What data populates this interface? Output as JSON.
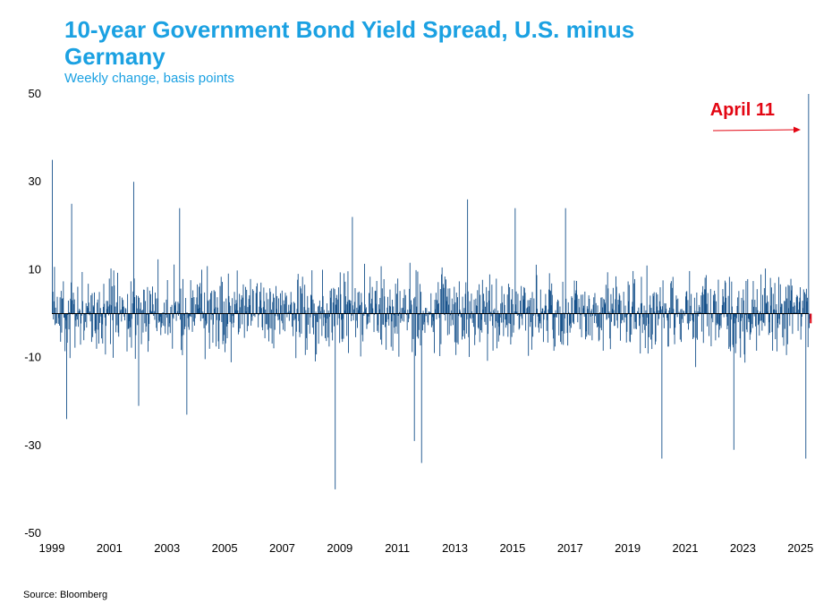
{
  "header": {
    "title": "10-year Government Bond Yield Spread, U.S. minus Germany",
    "subtitle": "Weekly change, basis points"
  },
  "footer": {
    "source": "Source: Bloomberg"
  },
  "colors": {
    "bars": "#15508a",
    "title": "#1ba1e2",
    "annotation": "#e30613"
  },
  "chart_data": {
    "type": "bar",
    "title": "10-year Government Bond Yield Spread, U.S. minus Germany",
    "subtitle": "Weekly change, basis points",
    "ylim": [
      -50,
      50
    ],
    "yticks": [
      50,
      30,
      10,
      -10,
      -30,
      -50
    ],
    "xlim": [
      1999,
      2025.35
    ],
    "xticks": [
      "1999",
      "2001",
      "2003",
      "2005",
      "2007",
      "2009",
      "2011",
      "2013",
      "2015",
      "2017",
      "2019",
      "2021",
      "2023",
      "2025"
    ],
    "frequency": "weekly",
    "grid": false,
    "legend": "none",
    "notable_values": [
      {
        "date": "1999-01",
        "value": 35
      },
      {
        "date": "1999-07",
        "value": -24
      },
      {
        "date": "1999-09",
        "value": 25
      },
      {
        "date": "2001-11",
        "value": 30
      },
      {
        "date": "2002-01",
        "value": -21
      },
      {
        "date": "2003-06",
        "value": 24
      },
      {
        "date": "2003-09",
        "value": -23
      },
      {
        "date": "2008-11",
        "value": -40
      },
      {
        "date": "2009-06",
        "value": 22
      },
      {
        "date": "2011-08",
        "value": -29
      },
      {
        "date": "2011-11",
        "value": -34
      },
      {
        "date": "2013-06",
        "value": 26
      },
      {
        "date": "2015-02",
        "value": 24
      },
      {
        "date": "2016-11",
        "value": 24
      },
      {
        "date": "2020-03",
        "value": -33
      },
      {
        "date": "2022-09",
        "value": -31
      },
      {
        "date": "2025-03",
        "value": -33
      },
      {
        "date": "2025-04-11",
        "value": 50
      }
    ],
    "annotations": [
      {
        "text": "April 11",
        "date": "2025-04-11",
        "value": 50
      }
    ]
  }
}
